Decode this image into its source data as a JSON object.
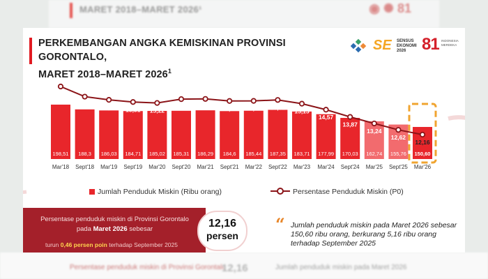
{
  "background": {
    "top_title": "MARET 2018–MARET 2026¹",
    "bottom_left_text": "Persentase penduduk miskin di Provinsi Gorontalo",
    "bottom_value": "12,16",
    "bottom_right_text": "Jumlah penduduk miskin pada Maret 2026"
  },
  "header": {
    "title_line1": "PERKEMBANGAN ANGKA KEMISKINAN PROVINSI GORONTALO,",
    "title_line2": "MARET 2018–MARET 2026",
    "title_sup": "1"
  },
  "logos": {
    "sensus_title": "SENSUS EKONOMI 2026",
    "sensus_mark": "SE",
    "anniv_mark": "81",
    "anniv_text": "INDONESIA MERDEKA"
  },
  "legend": {
    "bars": "Jumlah Penduduk Miskin (Ribu orang)",
    "line": "Persentase Penduduk Miskin (P0)"
  },
  "chart_data": {
    "type": "bar",
    "title": "PERKEMBANGAN ANGKA KEMISKINAN PROVINSI GORONTALO, MARET 2018–MARET 2026",
    "categories": [
      "Mar'18",
      "Sept'18",
      "Mar'19",
      "Sept'19",
      "Mar'20",
      "Sept'20",
      "Mar'21",
      "Sept'21",
      "Mar'22",
      "Sept'22",
      "Mar'23",
      "Mar'24",
      "Sept'24",
      "Mar'25",
      "Sept'25",
      "Mar'26"
    ],
    "series": [
      {
        "name": "Jumlah Penduduk Miskin (Ribu orang)",
        "kind": "bar",
        "values": [
          198.51,
          188.3,
          186.03,
          184.71,
          185.02,
          185.31,
          186.29,
          184.6,
          185.44,
          187.35,
          183.71,
          177.99,
          170.03,
          162.74,
          155.76,
          150.6
        ],
        "labels": [
          "198,51",
          "188,3",
          "186,03",
          "184,71",
          "185,02",
          "185,31",
          "186,29",
          "184,6",
          "185,44",
          "187,35",
          "183,71",
          "177,99",
          "170,03",
          "162,74",
          "155,76",
          "150,60"
        ]
      },
      {
        "name": "Persentase Penduduk Miskin (P0)",
        "kind": "line",
        "values": [
          16.81,
          15.83,
          15.52,
          15.31,
          15.22,
          15.59,
          15.61,
          15.41,
          15.42,
          15.51,
          15.15,
          14.57,
          13.87,
          13.24,
          12.62,
          12.16
        ],
        "labels": [
          "16,81",
          "15,83",
          "15,52",
          "15,31",
          "15,22",
          "15,59",
          "15,61",
          "15,41",
          "15,42",
          "15,51",
          "15,15",
          "14,57",
          "13,87",
          "13,24",
          "12,62",
          "12,16"
        ]
      }
    ],
    "highlight": "Mar'26",
    "colors": {
      "bar": "#e8262b",
      "bar_light": "#f26b6e",
      "line": "#8b1418",
      "highlight": "#f0a430"
    }
  },
  "summary": {
    "left_text_a": "Persentase penduduk miskin di Provinsi Gorontalo",
    "left_text_b": "pada",
    "left_text_period": "Maret 2026",
    "left_text_c": "sebesar",
    "change_a": "turun",
    "change_value": "0,46 persen poin",
    "change_b": "terhadap September 2025",
    "badge_value": "12,16",
    "badge_unit": "persen",
    "quote": "Jumlah penduduk miskin pada Maret 2026 sebesar 150,60 ribu orang, berkurang 5,16 ribu orang terhadap September 2025"
  }
}
